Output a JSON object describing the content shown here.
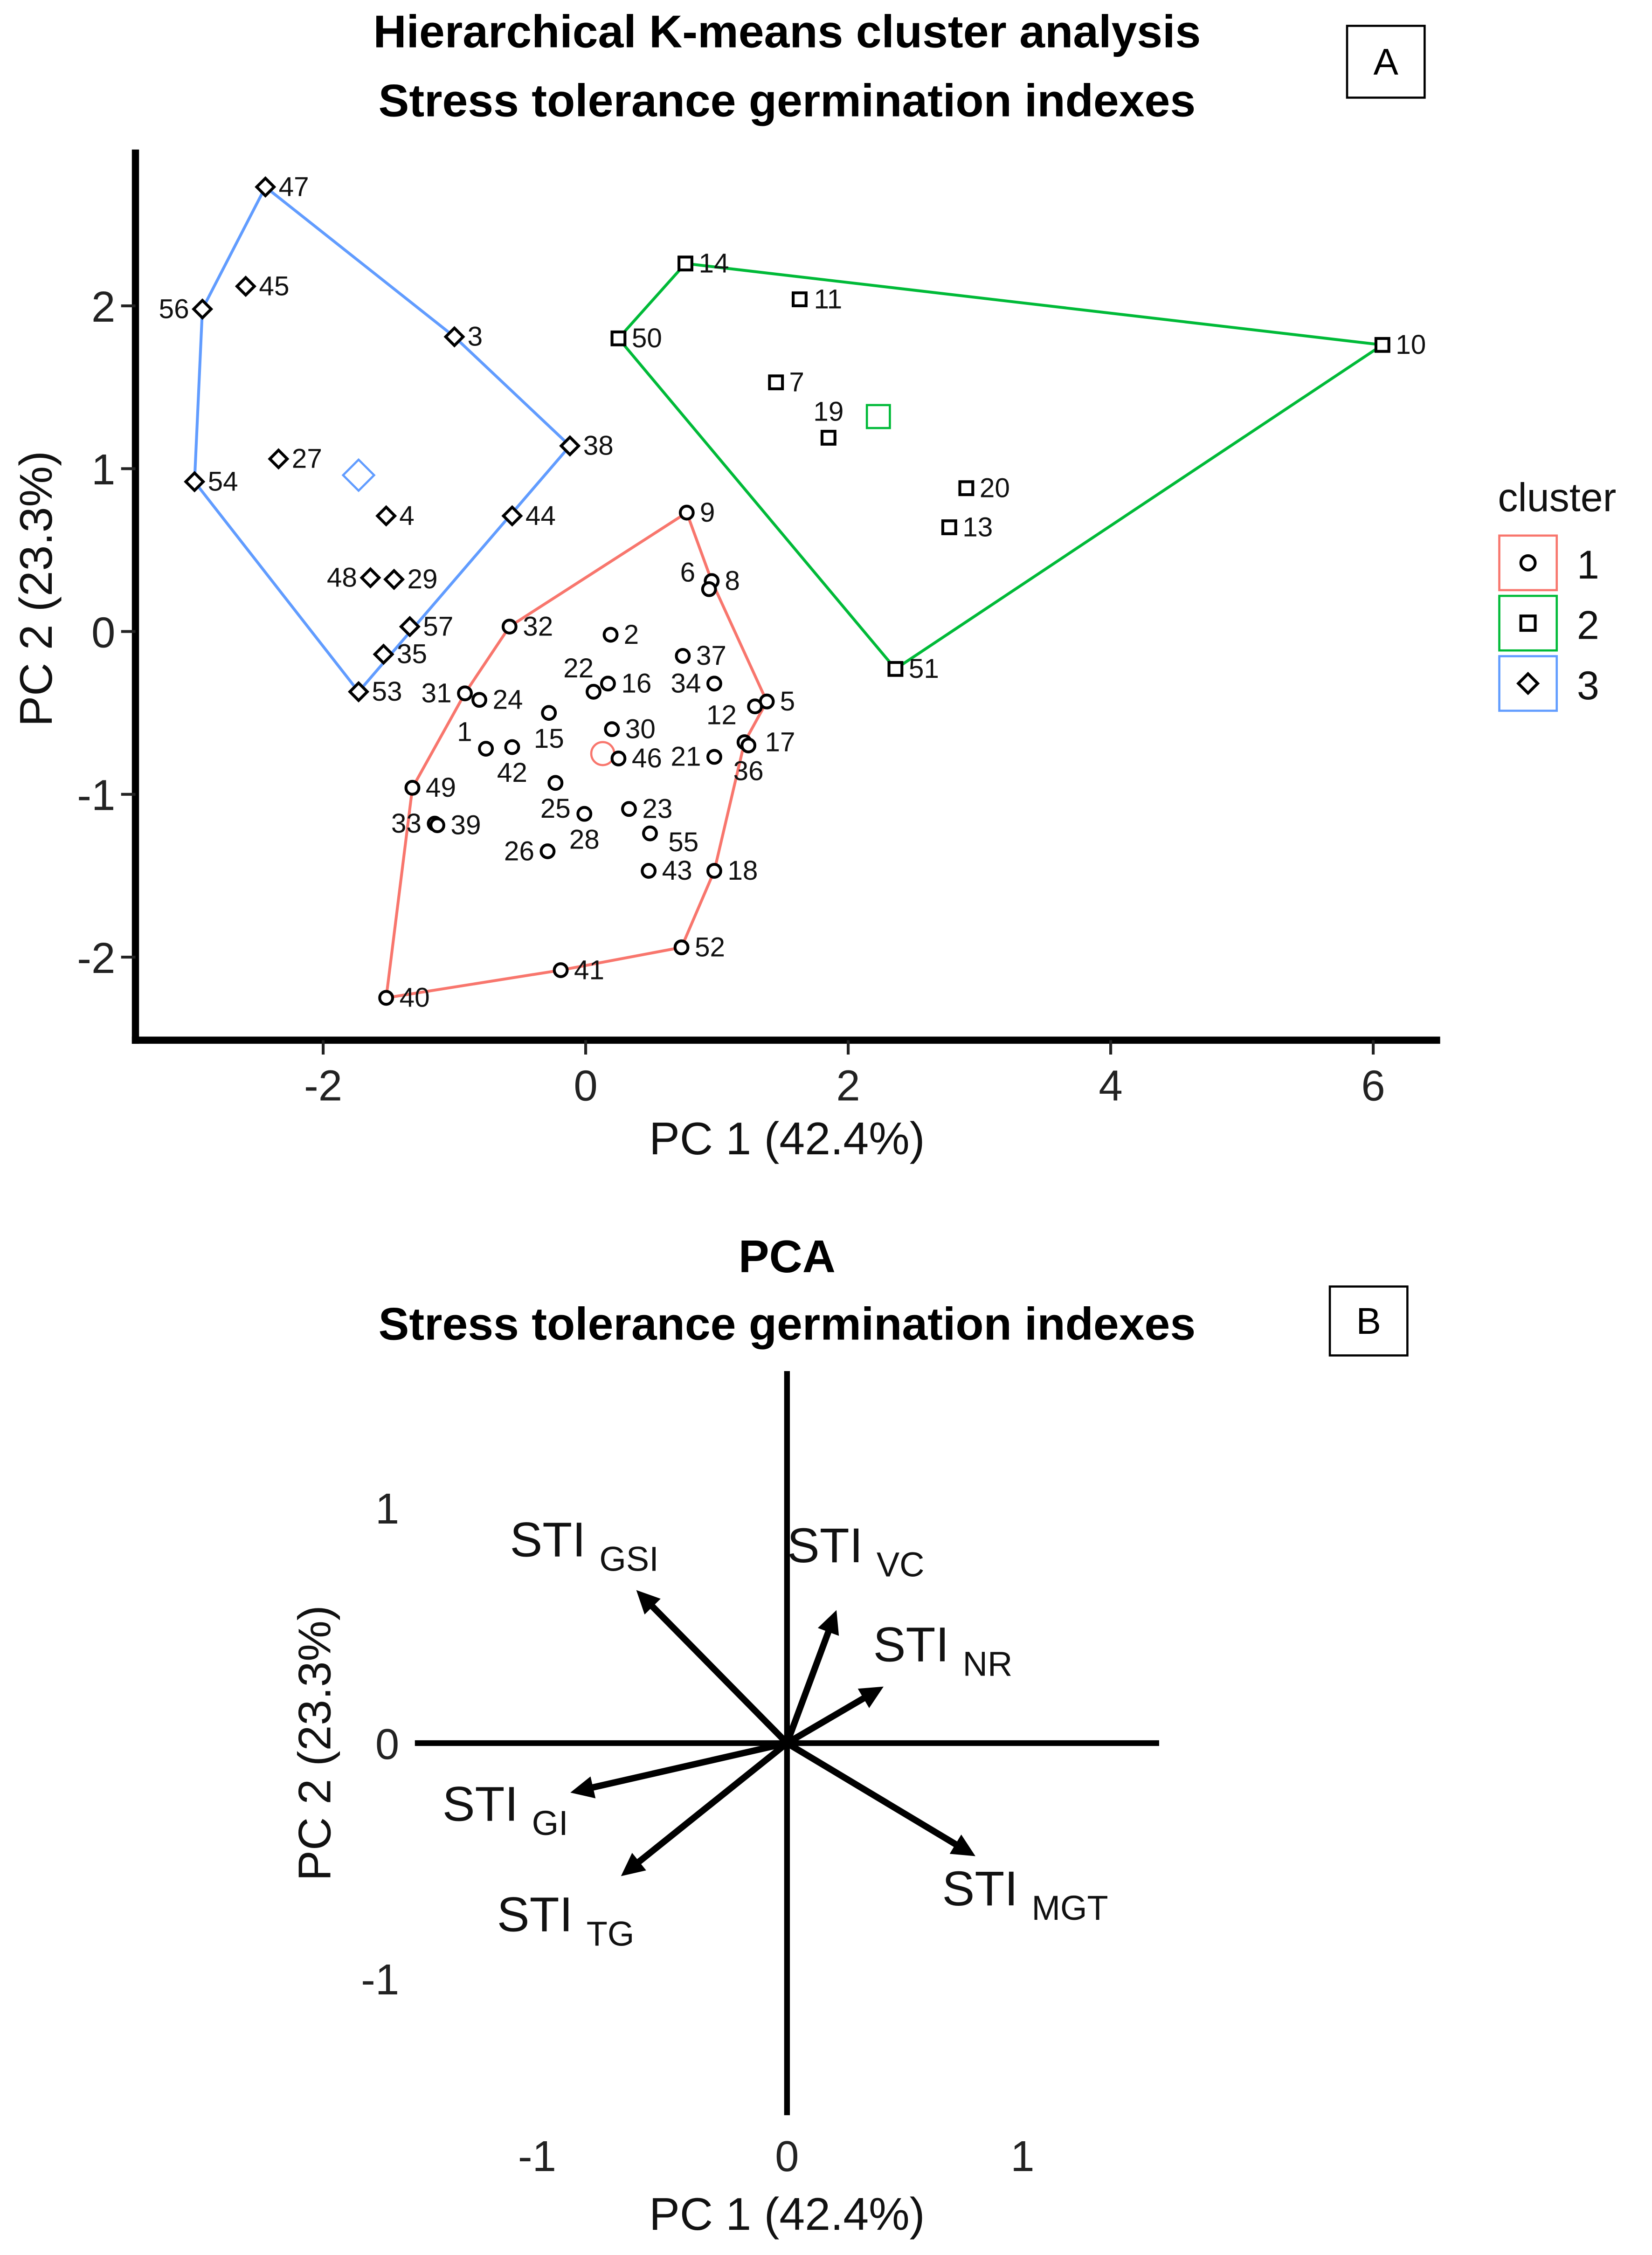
{
  "chart_data": [
    {
      "type": "scatter",
      "panel_label": "A",
      "title": [
        "Hierarchical K-means cluster analysis",
        "Stress tolerance germination indexes"
      ],
      "xlabel": "PC 1 (42.4%)",
      "ylabel": "PC 2 (23.3%)",
      "xlim": [
        -3.43,
        6.51
      ],
      "ylim": [
        -2.51,
        2.96
      ],
      "xticks": [
        -2,
        0,
        2,
        4,
        6
      ],
      "yticks": [
        -2,
        -1,
        0,
        1,
        2
      ],
      "legend": {
        "title": "cluster",
        "placement": "right"
      },
      "clusters": [
        {
          "name": "1",
          "color": "#F8766D",
          "shape": "circle",
          "centroid": [
            0.13,
            -0.75
          ],
          "hull": [
            "40",
            "49",
            "31",
            "32",
            "9",
            "8",
            "5",
            "17",
            "18",
            "52",
            "41"
          ],
          "points": [
            {
              "label": "9",
              "x": 0.77,
              "y": 0.73
            },
            {
              "label": "8",
              "x": 0.96,
              "y": 0.31
            },
            {
              "label": "6",
              "x": 0.94,
              "y": 0.26
            },
            {
              "label": "2",
              "x": 0.19,
              "y": -0.02
            },
            {
              "label": "37",
              "x": 0.74,
              "y": -0.15
            },
            {
              "label": "32",
              "x": -0.58,
              "y": 0.03
            },
            {
              "label": "22",
              "x": 0.06,
              "y": -0.37
            },
            {
              "label": "16",
              "x": 0.17,
              "y": -0.32
            },
            {
              "label": "34",
              "x": 0.98,
              "y": -0.32
            },
            {
              "label": "5",
              "x": 1.38,
              "y": -0.43
            },
            {
              "label": "12",
              "x": 1.29,
              "y": -0.46
            },
            {
              "label": "31",
              "x": -0.92,
              "y": -0.38
            },
            {
              "label": "24",
              "x": -0.81,
              "y": -0.42
            },
            {
              "label": "15",
              "x": -0.28,
              "y": -0.5
            },
            {
              "label": "30",
              "x": 0.2,
              "y": -0.6
            },
            {
              "label": "1",
              "x": -0.76,
              "y": -0.72
            },
            {
              "label": "42",
              "x": -0.56,
              "y": -0.71
            },
            {
              "label": "46",
              "x": 0.25,
              "y": -0.78
            },
            {
              "label": "21",
              "x": 0.98,
              "y": -0.77
            },
            {
              "label": "17",
              "x": 1.21,
              "y": -0.68
            },
            {
              "label": "36",
              "x": 1.24,
              "y": -0.7
            },
            {
              "label": "49",
              "x": -1.32,
              "y": -0.96
            },
            {
              "label": "25",
              "x": -0.23,
              "y": -0.93
            },
            {
              "label": "23",
              "x": 0.33,
              "y": -1.09
            },
            {
              "label": "33",
              "x": -1.15,
              "y": -1.18
            },
            {
              "label": "39",
              "x": -1.13,
              "y": -1.19
            },
            {
              "label": "28",
              "x": -0.01,
              "y": -1.12
            },
            {
              "label": "55",
              "x": 0.49,
              "y": -1.24
            },
            {
              "label": "26",
              "x": -0.29,
              "y": -1.35
            },
            {
              "label": "43",
              "x": 0.48,
              "y": -1.47
            },
            {
              "label": "18",
              "x": 0.98,
              "y": -1.47
            },
            {
              "label": "52",
              "x": 0.73,
              "y": -1.94
            },
            {
              "label": "41",
              "x": -0.19,
              "y": -2.08
            },
            {
              "label": "40",
              "x": -1.52,
              "y": -2.25
            }
          ]
        },
        {
          "name": "2",
          "color": "#00BA38",
          "shape": "square",
          "centroid": [
            2.23,
            1.32
          ],
          "hull": [
            "14",
            "10",
            "51",
            "50"
          ],
          "points": [
            {
              "label": "14",
              "x": 0.76,
              "y": 2.26
            },
            {
              "label": "50",
              "x": 0.25,
              "y": 1.8
            },
            {
              "label": "11",
              "x": 1.63,
              "y": 2.04
            },
            {
              "label": "7",
              "x": 1.45,
              "y": 1.53
            },
            {
              "label": "19",
              "x": 1.85,
              "y": 1.19
            },
            {
              "label": "20",
              "x": 2.9,
              "y": 0.88
            },
            {
              "label": "13",
              "x": 2.77,
              "y": 0.64
            },
            {
              "label": "10",
              "x": 6.07,
              "y": 1.76
            },
            {
              "label": "51",
              "x": 2.36,
              "y": -0.23
            }
          ]
        },
        {
          "name": "3",
          "color": "#619CFF",
          "shape": "diamond",
          "centroid": [
            -1.73,
            0.96
          ],
          "hull": [
            "47",
            "3",
            "38",
            "53",
            "54",
            "56"
          ],
          "points": [
            {
              "label": "47",
              "x": -2.44,
              "y": 2.73
            },
            {
              "label": "45",
              "x": -2.59,
              "y": 2.12
            },
            {
              "label": "56",
              "x": -2.92,
              "y": 1.98
            },
            {
              "label": "3",
              "x": -1.0,
              "y": 1.81
            },
            {
              "label": "38",
              "x": -0.12,
              "y": 1.14
            },
            {
              "label": "54",
              "x": -2.98,
              "y": 0.92
            },
            {
              "label": "27",
              "x": -2.34,
              "y": 1.06
            },
            {
              "label": "4",
              "x": -1.52,
              "y": 0.71
            },
            {
              "label": "44",
              "x": -0.56,
              "y": 0.71
            },
            {
              "label": "48",
              "x": -1.64,
              "y": 0.33
            },
            {
              "label": "29",
              "x": -1.46,
              "y": 0.32
            },
            {
              "label": "57",
              "x": -1.34,
              "y": 0.03
            },
            {
              "label": "35",
              "x": -1.54,
              "y": -0.14
            },
            {
              "label": "53",
              "x": -1.73,
              "y": -0.37
            }
          ]
        }
      ]
    },
    {
      "type": "biplot",
      "panel_label": "B",
      "title": [
        "PCA",
        "Stress tolerance germination indexes"
      ],
      "xlabel": "PC 1 (42.4%)",
      "ylabel": "PC 2 (23.3%)",
      "xlim": [
        -1.58,
        1.58
      ],
      "ylim": [
        -1.58,
        1.58
      ],
      "xticks": [
        -1,
        0,
        1
      ],
      "yticks": [
        -1,
        0,
        1
      ],
      "vectors": [
        {
          "name": "STI",
          "sub": "GSI",
          "x": -0.64,
          "y": 0.65
        },
        {
          "name": "STI",
          "sub": "VC",
          "x": 0.21,
          "y": 0.565
        },
        {
          "name": "STI",
          "sub": "NR",
          "x": 0.41,
          "y": 0.24
        },
        {
          "name": "STI",
          "sub": "GI",
          "x": -0.92,
          "y": -0.21
        },
        {
          "name": "STI",
          "sub": "TG",
          "x": -0.705,
          "y": -0.565
        },
        {
          "name": "STI",
          "sub": "MGT",
          "x": 0.8,
          "y": -0.48
        }
      ]
    }
  ]
}
